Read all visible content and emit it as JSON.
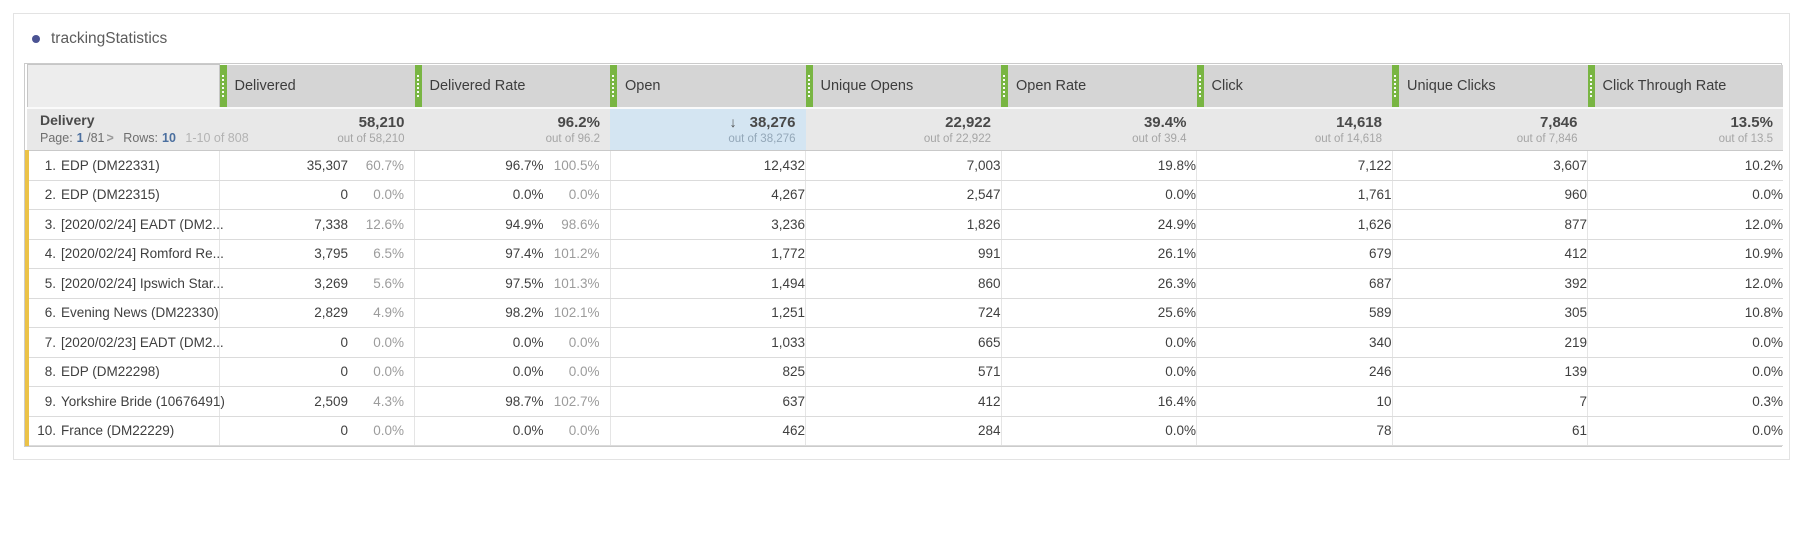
{
  "title": "trackingStatistics",
  "colors": {
    "accent_green": "#79b543",
    "accent_yellow": "#ebc247",
    "highlight_blue": "#d4e5f2",
    "link_blue": "#4b6f9f",
    "bullet_blue": "#4b5393"
  },
  "table": {
    "columns": [
      "Delivered",
      "Delivered Rate",
      "Open",
      "Unique Opens",
      "Open Rate",
      "Click",
      "Unique Clicks",
      "Click Through Rate"
    ],
    "summary": {
      "name": "Delivery",
      "sort_icon": "↓",
      "pagination": {
        "page_label": "Page:",
        "page": "1",
        "page_total": "/81",
        "chevron": ">",
        "rows_label": "Rows:",
        "rows": "10",
        "range": "1-10 of 808"
      },
      "totals": [
        {
          "value": "58,210",
          "out_of": "out of 58,210"
        },
        {
          "value": "96.2%",
          "out_of": "out of 96.2"
        },
        {
          "value": "38,276",
          "out_of": "out of 38,276"
        },
        {
          "value": "22,922",
          "out_of": "out of 22,922"
        },
        {
          "value": "39.4%",
          "out_of": "out of 39.4"
        },
        {
          "value": "14,618",
          "out_of": "out of 14,618"
        },
        {
          "value": "7,846",
          "out_of": "out of 7,846"
        },
        {
          "value": "13.5%",
          "out_of": "out of 13.5"
        }
      ]
    },
    "rows": [
      {
        "index": "1.",
        "name": "EDP (DM22331)",
        "delivered": "35,307",
        "delivered_pct": "60.7%",
        "delivered_rate": "96.7%",
        "delivered_rate_pct": "100.5%",
        "open": "12,432",
        "unique_opens": "7,003",
        "open_rate": "19.8%",
        "click": "7,122",
        "unique_clicks": "3,607",
        "click_through_rate": "10.2%"
      },
      {
        "index": "2.",
        "name": "EDP (DM22315)",
        "delivered": "0",
        "delivered_pct": "0.0%",
        "delivered_rate": "0.0%",
        "delivered_rate_pct": "0.0%",
        "open": "4,267",
        "unique_opens": "2,547",
        "open_rate": "0.0%",
        "click": "1,761",
        "unique_clicks": "960",
        "click_through_rate": "0.0%"
      },
      {
        "index": "3.",
        "name": "[2020/02/24] EADT (DM2...",
        "delivered": "7,338",
        "delivered_pct": "12.6%",
        "delivered_rate": "94.9%",
        "delivered_rate_pct": "98.6%",
        "open": "3,236",
        "unique_opens": "1,826",
        "open_rate": "24.9%",
        "click": "1,626",
        "unique_clicks": "877",
        "click_through_rate": "12.0%"
      },
      {
        "index": "4.",
        "name": "[2020/02/24] Romford Re...",
        "delivered": "3,795",
        "delivered_pct": "6.5%",
        "delivered_rate": "97.4%",
        "delivered_rate_pct": "101.2%",
        "open": "1,772",
        "unique_opens": "991",
        "open_rate": "26.1%",
        "click": "679",
        "unique_clicks": "412",
        "click_through_rate": "10.9%"
      },
      {
        "index": "5.",
        "name": "[2020/02/24] Ipswich Star...",
        "delivered": "3,269",
        "delivered_pct": "5.6%",
        "delivered_rate": "97.5%",
        "delivered_rate_pct": "101.3%",
        "open": "1,494",
        "unique_opens": "860",
        "open_rate": "26.3%",
        "click": "687",
        "unique_clicks": "392",
        "click_through_rate": "12.0%"
      },
      {
        "index": "6.",
        "name": "Evening News (DM22330)",
        "delivered": "2,829",
        "delivered_pct": "4.9%",
        "delivered_rate": "98.2%",
        "delivered_rate_pct": "102.1%",
        "open": "1,251",
        "unique_opens": "724",
        "open_rate": "25.6%",
        "click": "589",
        "unique_clicks": "305",
        "click_through_rate": "10.8%"
      },
      {
        "index": "7.",
        "name": "[2020/02/23] EADT (DM2...",
        "delivered": "0",
        "delivered_pct": "0.0%",
        "delivered_rate": "0.0%",
        "delivered_rate_pct": "0.0%",
        "open": "1,033",
        "unique_opens": "665",
        "open_rate": "0.0%",
        "click": "340",
        "unique_clicks": "219",
        "click_through_rate": "0.0%"
      },
      {
        "index": "8.",
        "name": "EDP (DM22298)",
        "delivered": "0",
        "delivered_pct": "0.0%",
        "delivered_rate": "0.0%",
        "delivered_rate_pct": "0.0%",
        "open": "825",
        "unique_opens": "571",
        "open_rate": "0.0%",
        "click": "246",
        "unique_clicks": "139",
        "click_through_rate": "0.0%"
      },
      {
        "index": "9.",
        "name": "Yorkshire Bride (10676491)",
        "delivered": "2,509",
        "delivered_pct": "4.3%",
        "delivered_rate": "98.7%",
        "delivered_rate_pct": "102.7%",
        "open": "637",
        "unique_opens": "412",
        "open_rate": "16.4%",
        "click": "10",
        "unique_clicks": "7",
        "click_through_rate": "0.3%"
      },
      {
        "index": "10.",
        "name": "France (DM22229)",
        "delivered": "0",
        "delivered_pct": "0.0%",
        "delivered_rate": "0.0%",
        "delivered_rate_pct": "0.0%",
        "open": "462",
        "unique_opens": "284",
        "open_rate": "0.0%",
        "click": "78",
        "unique_clicks": "61",
        "click_through_rate": "0.0%"
      }
    ]
  }
}
